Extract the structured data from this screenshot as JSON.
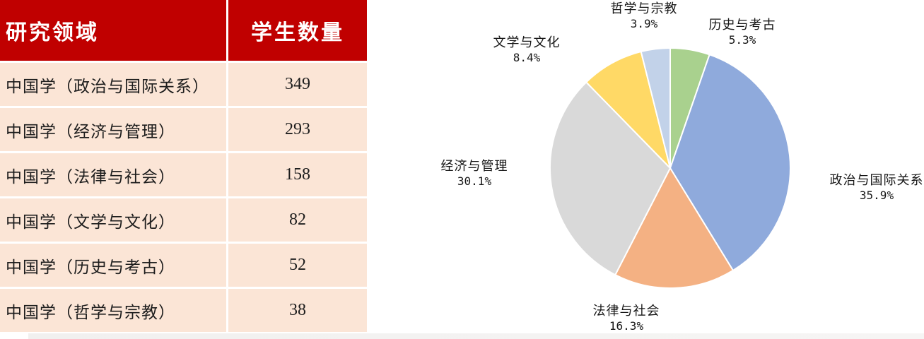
{
  "chart_data": [
    {
      "type": "table",
      "columns": [
        "研究领域",
        "学生数量"
      ],
      "rows": [
        [
          "中国学（政治与国际关系）",
          "349"
        ],
        [
          "中国学（经济与管理）",
          "293"
        ],
        [
          "中国学（法律与社会）",
          "158"
        ],
        [
          "中国学（文学与文化）",
          "82"
        ],
        [
          "中国学（历史与考古）",
          "52"
        ],
        [
          "中国学（哲学与宗教）",
          "38"
        ]
      ],
      "header_bg_color": "#c00000",
      "header_text_color": "#ffffff",
      "row_bg_color": "#fbe5d6"
    },
    {
      "type": "pie",
      "start_angle_deg": 0,
      "direction": "clockwise",
      "legend_position": "none",
      "slices": [
        {
          "id": "history-archaeology",
          "label": "历史与考古",
          "pct": 5.3,
          "pct_text": "5.3%",
          "color": "#a9d18e"
        },
        {
          "id": "politics-international-relations",
          "label": "政治与国际关系",
          "pct": 35.9,
          "pct_text": "35.9%",
          "color": "#8faadc"
        },
        {
          "id": "law-society",
          "label": "法律与社会",
          "pct": 16.3,
          "pct_text": "16.3%",
          "color": "#f4b183"
        },
        {
          "id": "economics-management",
          "label": "经济与管理",
          "pct": 30.1,
          "pct_text": "30.1%",
          "color": "#d9d9d9"
        },
        {
          "id": "literature-culture",
          "label": "文学与文化",
          "pct": 8.4,
          "pct_text": "8.4%",
          "color": "#ffd966"
        },
        {
          "id": "philosophy-religion",
          "label": "哲学与宗教",
          "pct": 3.9,
          "pct_text": "3.9%",
          "color": "#c2d2e9"
        }
      ]
    }
  ]
}
